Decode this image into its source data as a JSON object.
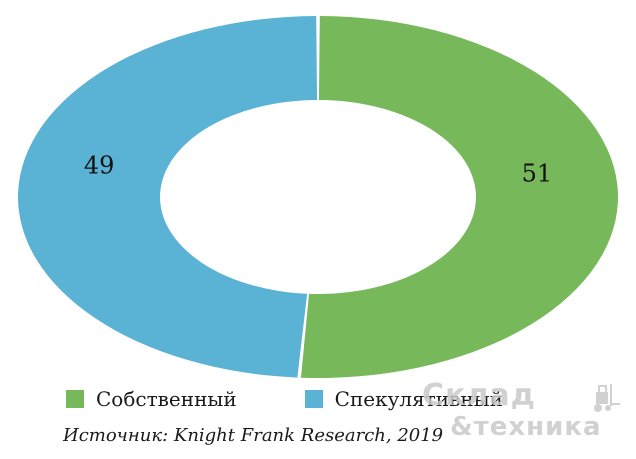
{
  "chart_data": {
    "type": "pie",
    "donut": true,
    "title": "",
    "categories": [
      "Собственный",
      "Спекулятивный"
    ],
    "values": [
      51,
      49
    ],
    "colors": [
      "#77b85b",
      "#5ab2d4"
    ],
    "data_labels": [
      "51",
      "49"
    ],
    "legend_position": "bottom-left",
    "start_angle_deg": 90,
    "direction": "clockwise"
  },
  "legend": {
    "items": [
      {
        "label": "Собственный",
        "color": "#77b85b"
      },
      {
        "label": "Спекулятивный",
        "color": "#5ab2d4"
      }
    ]
  },
  "source": "Источник: Knight Frank Research, 2019",
  "watermark": {
    "line1": "Склад",
    "line2": "&техника",
    "icon": "forklift-icon"
  }
}
